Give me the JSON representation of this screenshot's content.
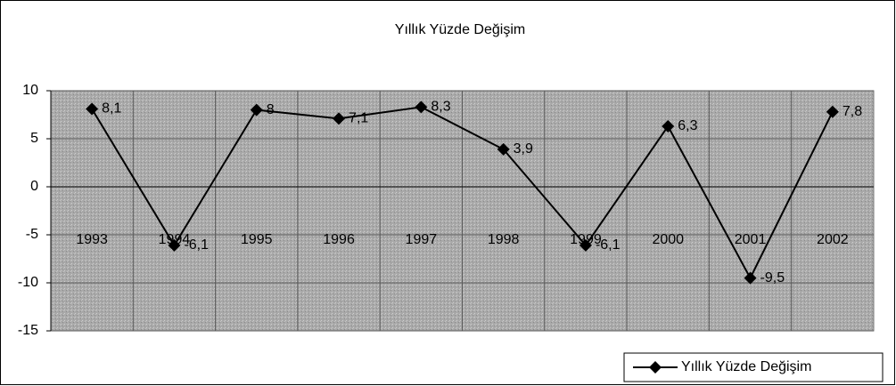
{
  "chart_data": {
    "type": "line",
    "title": "Yıllık Yüzde Değişim",
    "categories": [
      "1993",
      "1994",
      "1995",
      "1996",
      "1997",
      "1998",
      "1999",
      "2000",
      "2001",
      "2002"
    ],
    "series": [
      {
        "name": "Yıllık Yüzde Değişim",
        "color": "#000000",
        "values": [
          8.1,
          -6.1,
          8,
          7.1,
          8.3,
          3.9,
          -6.1,
          6.3,
          -9.5,
          7.8
        ],
        "value_labels": [
          "8,1",
          "-6,1",
          "8",
          "7,1",
          "8,3",
          "3,9",
          "-6,1",
          "6,3",
          "-9,5",
          "7,8"
        ]
      }
    ],
    "ylim": [
      -15,
      10
    ],
    "yticks": [
      -15,
      -10,
      -5,
      0,
      5,
      10
    ],
    "grid": true,
    "legend": "bottom-right"
  }
}
